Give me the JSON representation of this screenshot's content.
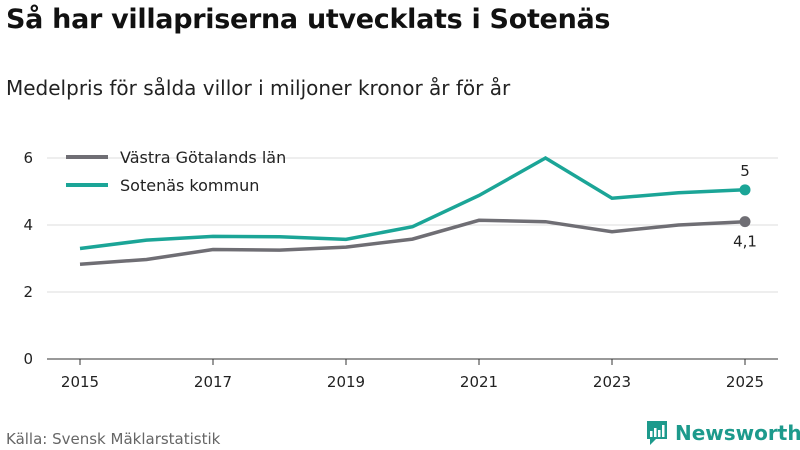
{
  "title": "Så har villapriserna utvecklats i Sotenäs",
  "subtitle": "Medelpris för sålda villor i miljoner kronor år för år",
  "source": "Källa: Svensk Mäklarstatistik",
  "brand": {
    "name": "Newsworthy",
    "color": "#1d9a8c",
    "icon": "newsworthy-logo-icon"
  },
  "chart_data": {
    "type": "line",
    "title": "Så har villapriserna utvecklats i Sotenäs",
    "subtitle": "Medelpris för sålda villor i miljoner kronor år för år",
    "xlabel": "",
    "ylabel": "",
    "x": [
      2015,
      2016,
      2017,
      2018,
      2019,
      2020,
      2021,
      2022,
      2023,
      2024,
      2025
    ],
    "x_ticks": [
      "2015",
      "2017",
      "2019",
      "2021",
      "2023",
      "2025"
    ],
    "y_ticks": [
      "0",
      "2",
      "4",
      "6"
    ],
    "ylim": [
      0,
      6.5
    ],
    "grid": true,
    "legend_position": "top-left",
    "series": [
      {
        "name": "Västra Götalands län",
        "color": "#6f6e74",
        "values": [
          2.83,
          2.97,
          3.27,
          3.25,
          3.34,
          3.58,
          4.14,
          4.1,
          3.8,
          4.0,
          4.1
        ],
        "end_label": "4,1"
      },
      {
        "name": "Sotenäs kommun",
        "color": "#1ba597",
        "values": [
          3.3,
          3.55,
          3.66,
          3.65,
          3.57,
          3.95,
          4.88,
          6.0,
          4.8,
          4.96,
          5.05
        ],
        "end_label": "5"
      }
    ]
  }
}
